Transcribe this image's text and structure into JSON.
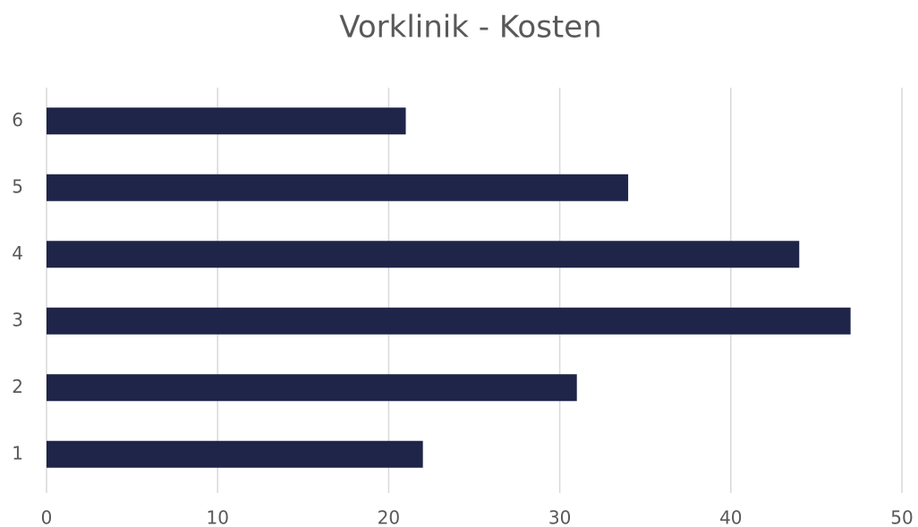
{
  "chart_data": {
    "type": "bar",
    "orientation": "horizontal",
    "title": "Vorklinik - Kosten",
    "categories": [
      "1",
      "2",
      "3",
      "4",
      "5",
      "6"
    ],
    "values": [
      22,
      31,
      47,
      44,
      34,
      21
    ],
    "color": "#1f2549",
    "xlim": [
      0,
      50
    ],
    "xticks": [
      0,
      10,
      20,
      30,
      40,
      50
    ],
    "grid": true
  }
}
